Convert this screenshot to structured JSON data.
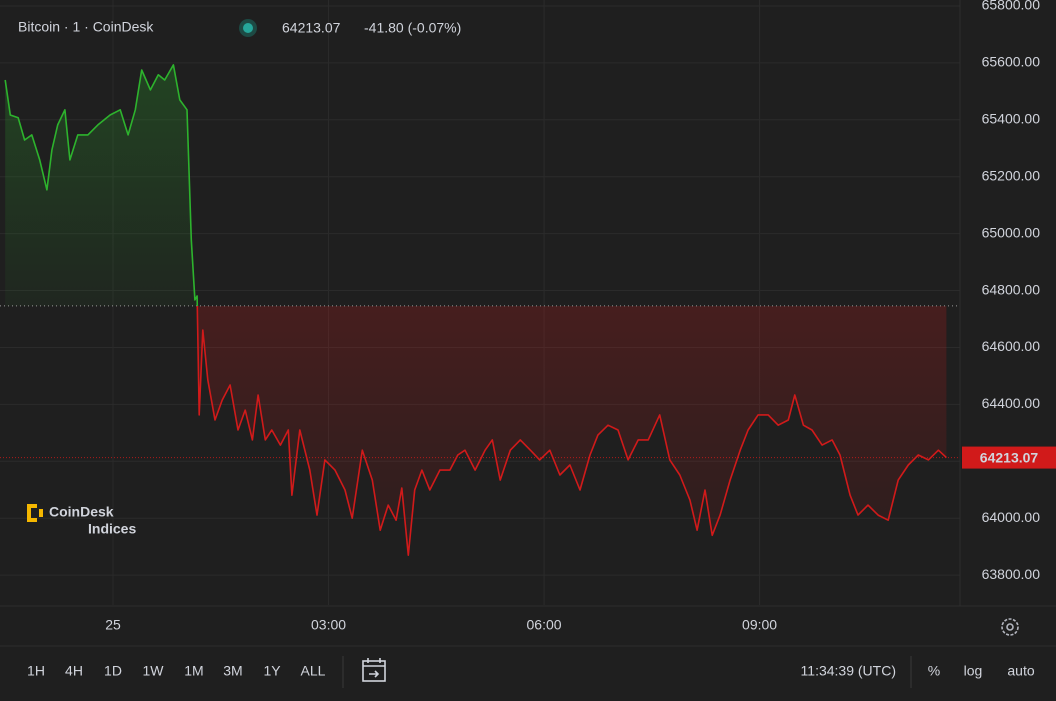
{
  "chart_data": {
    "type": "baseline-line",
    "title": "Bitcoin · 1 · CoinDesk",
    "price_label": "64213.07",
    "change_label": "-41.80 (-0.07%)",
    "last_value": 64213.07,
    "baseline": 64746,
    "up_color": "#2db32d",
    "down_color": "#d11a1a",
    "x": [
      -1.5,
      -1.43,
      -1.32,
      -1.23,
      -1.13,
      -1.02,
      -0.92,
      -0.85,
      -0.77,
      -0.67,
      -0.6,
      -0.49,
      -0.35,
      -0.21,
      -0.04,
      0.1,
      0.21,
      0.31,
      0.4,
      0.52,
      0.63,
      0.72,
      0.84,
      0.93,
      1.03,
      1.09,
      1.14,
      1.17,
      1.2,
      1.25,
      1.32,
      1.42,
      1.52,
      1.63,
      1.74,
      1.84,
      1.94,
      2.02,
      2.12,
      2.21,
      2.33,
      2.44,
      2.49,
      2.6,
      2.74,
      2.84,
      2.95,
      3.09,
      3.23,
      3.33,
      3.47,
      3.61,
      3.72,
      3.83,
      3.94,
      4.02,
      4.11,
      4.2,
      4.3,
      4.41,
      4.55,
      4.69,
      4.8,
      4.9,
      5.04,
      5.18,
      5.28,
      5.39,
      5.53,
      5.67,
      5.81,
      5.94,
      6.08,
      6.22,
      6.36,
      6.5,
      6.64,
      6.75,
      6.89,
      7.03,
      7.17,
      7.31,
      7.45,
      7.61,
      7.75,
      7.89,
      8.03,
      8.13,
      8.24,
      8.34,
      8.45,
      8.59,
      8.73,
      8.84,
      8.98,
      9.12,
      9.26,
      9.4,
      9.49,
      9.61,
      9.73,
      9.87,
      10.01,
      10.12,
      10.26,
      10.37,
      10.51,
      10.65,
      10.79,
      10.93,
      11.07,
      11.21,
      11.35,
      11.49,
      11.6
    ],
    "values": [
      65540,
      65417,
      65407,
      65329,
      65347,
      65259,
      65154,
      65294,
      65382,
      65435,
      65259,
      65347,
      65347,
      65382,
      65417,
      65435,
      65347,
      65435,
      65575,
      65505,
      65558,
      65540,
      65593,
      65470,
      65435,
      64978,
      64767,
      64781,
      64363,
      64661,
      64486,
      64345,
      64415,
      64468,
      64310,
      64380,
      64275,
      64433,
      64275,
      64310,
      64257,
      64310,
      64081,
      64310,
      64169,
      64011,
      64205,
      64169,
      64099,
      64000,
      64239,
      64134,
      63958,
      64046,
      63993,
      64106,
      63870,
      64099,
      64169,
      64099,
      64169,
      64169,
      64222,
      64239,
      64169,
      64239,
      64275,
      64134,
      64239,
      64275,
      64239,
      64205,
      64239,
      64152,
      64187,
      64099,
      64222,
      64292,
      64327,
      64310,
      64205,
      64275,
      64275,
      64363,
      64205,
      64152,
      64064,
      63958,
      64099,
      63940,
      64011,
      64134,
      64239,
      64310,
      64363,
      64363,
      64327,
      64345,
      64433,
      64327,
      64310,
      64257,
      64275,
      64222,
      64081,
      64011,
      64046,
      64011,
      63993,
      64134,
      64187,
      64222,
      64205,
      64239,
      64213.07
    ],
    "xlim": [
      -1.573,
      11.79
    ],
    "xticks": [
      {
        "value": 0,
        "label": "25"
      },
      {
        "value": 3,
        "label": "03:00"
      },
      {
        "value": 6,
        "label": "06:00"
      },
      {
        "value": 9,
        "label": "09:00"
      }
    ],
    "ylim": [
      63695,
      65821
    ],
    "yticks": [
      {
        "value": 63800,
        "label": "63800.00"
      },
      {
        "value": 64000,
        "label": "64000.00"
      },
      {
        "value": 64200,
        "label": "64200.00"
      },
      {
        "value": 64400,
        "label": "64400.00"
      },
      {
        "value": 64600,
        "label": "64600.00"
      },
      {
        "value": 64800,
        "label": "64800.00"
      },
      {
        "value": 65000,
        "label": "65000.00"
      },
      {
        "value": 65200,
        "label": "65200.00"
      },
      {
        "value": 65400,
        "label": "65400.00"
      },
      {
        "value": 65600,
        "label": "65600.00"
      },
      {
        "value": 65800,
        "label": "65800.00"
      }
    ],
    "grid": true,
    "logo": {
      "name": "CoinDesk",
      "sub": "Indices"
    },
    "toolbar": {
      "ranges": [
        "1H",
        "4H",
        "1D",
        "1W",
        "1M",
        "3M",
        "1Y",
        "ALL"
      ],
      "time": "11:34:39 (UTC)",
      "options": [
        "%",
        "log",
        "auto"
      ]
    }
  }
}
